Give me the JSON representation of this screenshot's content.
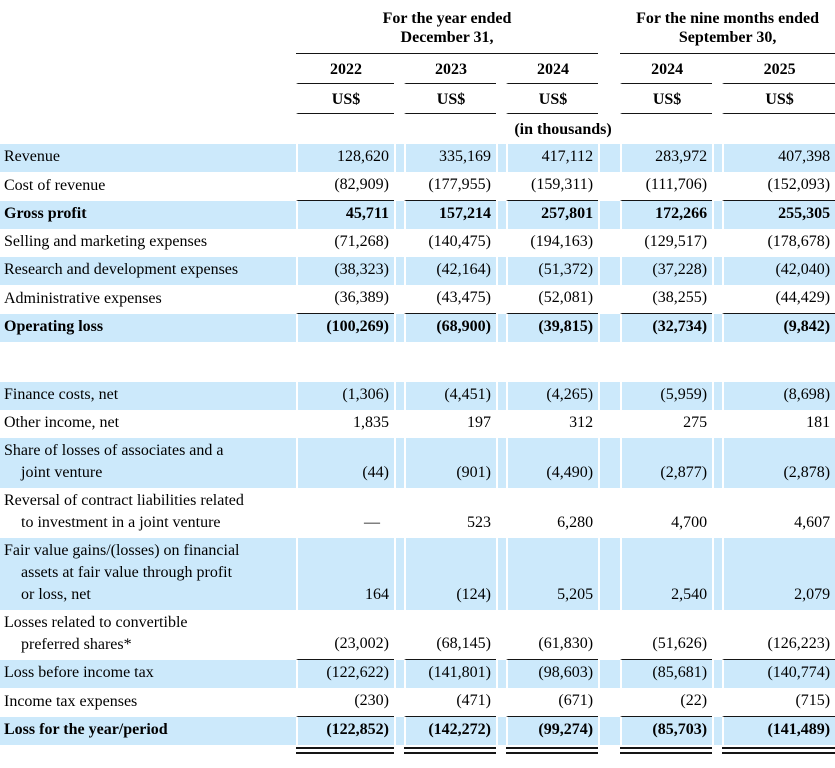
{
  "colors": {
    "row_shade": "#cce9fb",
    "rule": "#151515",
    "text": "#000000"
  },
  "header": {
    "groups": [
      {
        "label_line1": "For the year ended",
        "label_line2": "December 31,"
      },
      {
        "label_line1": "For the nine months ended",
        "label_line2": "September 30,"
      }
    ],
    "years": [
      "2022",
      "2023",
      "2024",
      "2024",
      "2025"
    ],
    "currency": [
      "US$",
      "US$",
      "US$",
      "US$",
      "US$"
    ],
    "units_note": "(in thousands)"
  },
  "table": {
    "rows": [
      {
        "label_lines": [
          "Revenue"
        ],
        "values": [
          "128,620",
          "335,169",
          "417,112",
          "283,972",
          "407,398"
        ],
        "shaded": true
      },
      {
        "label_lines": [
          "Cost of revenue"
        ],
        "values": [
          "(82,909)",
          "(177,955)",
          "(159,311)",
          "(111,706)",
          "(152,093)"
        ],
        "rule_below": true
      },
      {
        "label_lines": [
          "Gross profit"
        ],
        "values": [
          "45,711",
          "157,214",
          "257,801",
          "172,266",
          "255,305"
        ],
        "shaded": true,
        "bold": true
      },
      {
        "label_lines": [
          "Selling and marketing expenses"
        ],
        "values": [
          "(71,268)",
          "(140,475)",
          "(194,163)",
          "(129,517)",
          "(178,678)"
        ]
      },
      {
        "label_lines": [
          "Research and development expenses"
        ],
        "values": [
          "(38,323)",
          "(42,164)",
          "(51,372)",
          "(37,228)",
          "(42,040)"
        ],
        "shaded": true
      },
      {
        "label_lines": [
          "Administrative expenses"
        ],
        "values": [
          "(36,389)",
          "(43,475)",
          "(52,081)",
          "(38,255)",
          "(44,429)"
        ],
        "rule_below": true
      },
      {
        "label_lines": [
          "Operating loss"
        ],
        "values": [
          "(100,269)",
          "(68,900)",
          "(39,815)",
          "(32,734)",
          "(9,842)"
        ],
        "shaded": true,
        "bold": true
      },
      {
        "type": "spacer"
      },
      {
        "label_lines": [
          "Finance costs, net"
        ],
        "values": [
          "(1,306)",
          "(4,451)",
          "(4,265)",
          "(5,959)",
          "(8,698)"
        ],
        "shaded": true
      },
      {
        "label_lines": [
          "Other income, net"
        ],
        "values": [
          "1,835",
          "197",
          "312",
          "275",
          "181"
        ]
      },
      {
        "label_lines": [
          "Share of losses of associates and a",
          "joint venture"
        ],
        "values": [
          "(44)",
          "(901)",
          "(4,490)",
          "(2,877)",
          "(2,878)"
        ],
        "shaded": true
      },
      {
        "label_lines": [
          "Reversal of contract liabilities related",
          "to investment in a joint venture"
        ],
        "values": [
          "—",
          "523",
          "6,280",
          "4,700",
          "4,607"
        ]
      },
      {
        "label_lines": [
          "Fair value gains/(losses) on financial",
          "assets at fair value through profit",
          "or loss, net"
        ],
        "values": [
          "164",
          "(124)",
          "5,205",
          "2,540",
          "2,079"
        ],
        "shaded": true
      },
      {
        "label_lines": [
          "Losses related to convertible",
          "preferred shares*"
        ],
        "values": [
          "(23,002)",
          "(68,145)",
          "(61,830)",
          "(51,626)",
          "(126,223)"
        ],
        "rule_below": true
      },
      {
        "label_lines": [
          "Loss before income tax"
        ],
        "values": [
          "(122,622)",
          "(141,801)",
          "(98,603)",
          "(85,681)",
          "(140,774)"
        ],
        "shaded": true
      },
      {
        "label_lines": [
          "Income tax expenses"
        ],
        "values": [
          "(230)",
          "(471)",
          "(671)",
          "(22)",
          "(715)"
        ],
        "rule_below": true
      },
      {
        "label_lines": [
          "Loss for the year/period"
        ],
        "values": [
          "(122,852)",
          "(142,272)",
          "(99,274)",
          "(85,703)",
          "(141,489)"
        ],
        "shaded": true,
        "bold": true
      },
      {
        "type": "double-rule"
      }
    ]
  }
}
